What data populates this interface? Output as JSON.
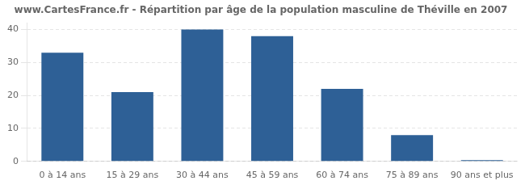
{
  "chart_data": {
    "type": "bar",
    "title": "www.CartesFrance.fr - Répartition par âge de la population masculine de Théville en 2007",
    "categories": [
      "0 à 14 ans",
      "15 à 29 ans",
      "30 à 44 ans",
      "45 à 59 ans",
      "60 à 74 ans",
      "75 à 89 ans",
      "90 ans et plus"
    ],
    "values": [
      33,
      21,
      40,
      38,
      22,
      8,
      0.4
    ],
    "color": "#2e6096",
    "ylim": [
      0,
      42
    ],
    "yticks": [
      0,
      10,
      20,
      30,
      40
    ],
    "grid": true
  }
}
